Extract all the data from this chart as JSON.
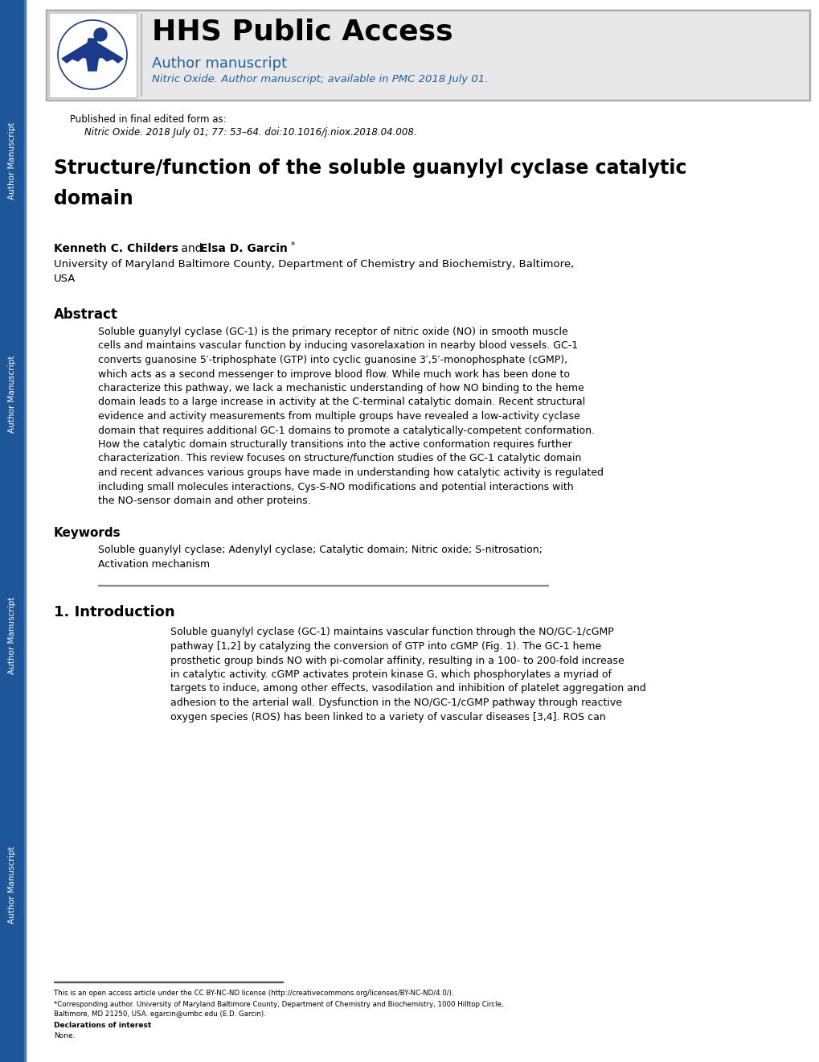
{
  "bg_color": "#ffffff",
  "sidebar_blue": "#1e5799",
  "header_bg": "#e8e8e8",
  "header_border_color": "#bbbbbb",
  "hhs_title": "HHS Public Access",
  "hhs_subtitle": "Author manuscript",
  "hhs_italic": "Nitric Oxide. Author manuscript; available in PMC 2018 July 01.",
  "published_line1": "Published in final edited form as:",
  "published_line2": "Nitric Oxide. 2018 July 01; 77: 53–64. doi:10.1016/j.niox.2018.04.008.",
  "paper_title_line1": "Structure/function of the soluble guanylyl cyclase catalytic",
  "paper_title_line2": "domain",
  "author_bold1": "Kenneth C. Childers",
  "author_and": " and ",
  "author_bold2": "Elsa D. Garcin",
  "author_star": "*",
  "affiliation_line1": "University of Maryland Baltimore County, Department of Chemistry and Biochemistry, Baltimore,",
  "affiliation_line2": "USA",
  "abstract_heading": "Abstract",
  "abstract_lines": [
    "Soluble guanylyl cyclase (GC-1) is the primary receptor of nitric oxide (NO) in smooth muscle",
    "cells and maintains vascular function by inducing vasorelaxation in nearby blood vessels. GC-1",
    "converts guanosine 5′-triphosphate (GTP) into cyclic guanosine 3′,5′-monophosphate (cGMP),",
    "which acts as a second messenger to improve blood flow. While much work has been done to",
    "characterize this pathway, we lack a mechanistic understanding of how NO binding to the heme",
    "domain leads to a large increase in activity at the C-terminal catalytic domain. Recent structural",
    "evidence and activity measurements from multiple groups have revealed a low-activity cyclase",
    "domain that requires additional GC-1 domains to promote a catalytically-competent conformation.",
    "How the catalytic domain structurally transitions into the active conformation requires further",
    "characterization. This review focuses on structure/function studies of the GC-1 catalytic domain",
    "and recent advances various groups have made in understanding how catalytic activity is regulated",
    "including small molecules interactions, Cys-S-NO modifications and potential interactions with",
    "the NO-sensor domain and other proteins."
  ],
  "keywords_heading": "Keywords",
  "keywords_lines": [
    "Soluble guanylyl cyclase; Adenylyl cyclase; Catalytic domain; Nitric oxide; S-nitrosation;",
    "Activation mechanism"
  ],
  "intro_heading": "1. Introduction",
  "intro_lines": [
    "Soluble guanylyl cyclase (GC-1) maintains vascular function through the NO/GC-1/cGMP",
    "pathway [1,2] by catalyzing the conversion of GTP into cGMP (Fig. 1). The GC-1 heme",
    "prosthetic group binds NO with pi-comolar affinity, resulting in a 100- to 200-fold increase",
    "in catalytic activity. cGMP activates protein kinase G, which phosphorylates a myriad of",
    "targets to induce, among other effects, vasodilation and inhibition of platelet aggregation and",
    "adhesion to the arterial wall. Dysfunction in the NO/GC-1/cGMP pathway through reactive",
    "oxygen species (ROS) has been linked to a variety of vascular diseases [3,4]. ROS can"
  ],
  "footer_license": "This is an open access article under the CC BY-NC-ND license (http://creativecommons.org/licenses/BY-NC-ND/4.0/).",
  "footer_corr_line1": "*Corresponding author. University of Maryland Baltimore County, Department of Chemistry and Biochemistry, 1000 Hilltop Circle,",
  "footer_corr_line2": "Baltimore, MD 21250, USA. egarcin@umbc.edu (E.D. Garcin).",
  "footer_declarations": "Declarations of interest",
  "footer_none": "None.",
  "blue_color": "#2060a0",
  "link_color": "#2060a0",
  "text_color": "#000000"
}
